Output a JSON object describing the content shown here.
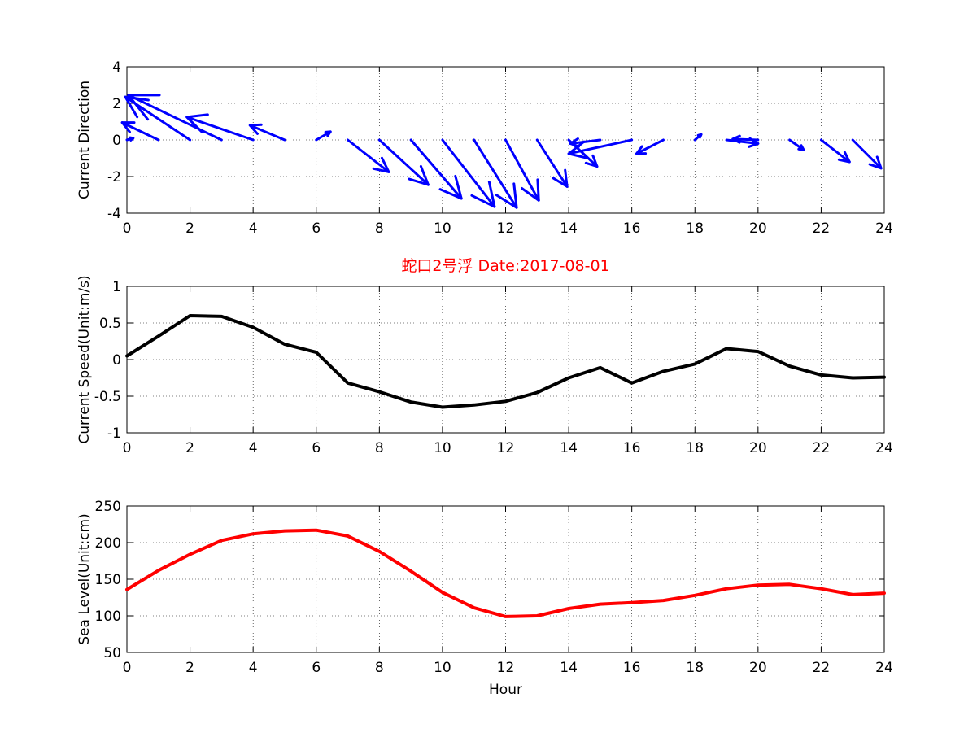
{
  "chart_data": [
    {
      "type": "quiver",
      "title": "",
      "xlabel": "",
      "ylabel": "Current Direction",
      "xlim": [
        0,
        24
      ],
      "ylim": [
        -4,
        4
      ],
      "xticks": [
        "0",
        "2",
        "4",
        "6",
        "8",
        "10",
        "12",
        "14",
        "16",
        "18",
        "20",
        "22",
        "24"
      ],
      "yticks": [
        "-4",
        "-2",
        "0",
        "2",
        "4"
      ],
      "grid": true,
      "color": "#0000ff",
      "arrows": [
        {
          "x": 0,
          "u": 0.2,
          "v": 0.1
        },
        {
          "x": 1,
          "u": -1.15,
          "v": 0.95
        },
        {
          "x": 2,
          "u": -2.05,
          "v": 2.35
        },
        {
          "x": 3,
          "u": -2.95,
          "v": 2.45
        },
        {
          "x": 4,
          "u": -2.1,
          "v": 1.25
        },
        {
          "x": 5,
          "u": -1.1,
          "v": 0.8
        },
        {
          "x": 6,
          "u": 0.45,
          "v": 0.45
        },
        {
          "x": 7,
          "u": 1.3,
          "v": -1.75
        },
        {
          "x": 8,
          "u": 1.55,
          "v": -2.45
        },
        {
          "x": 9,
          "u": 1.6,
          "v": -3.2
        },
        {
          "x": 10,
          "u": 1.65,
          "v": -3.65
        },
        {
          "x": 11,
          "u": 1.35,
          "v": -3.7
        },
        {
          "x": 12,
          "u": 1.05,
          "v": -3.3
        },
        {
          "x": 13,
          "u": 0.95,
          "v": -2.55
        },
        {
          "x": 14,
          "u": 0.9,
          "v": -1.45
        },
        {
          "x": 15,
          "u": -0.95,
          "v": -0.2
        },
        {
          "x": 16,
          "u": -2.0,
          "v": -0.75
        },
        {
          "x": 17,
          "u": -0.85,
          "v": -0.75
        },
        {
          "x": 18,
          "u": 0.2,
          "v": 0.3
        },
        {
          "x": 19,
          "u": 1.0,
          "v": -0.2
        },
        {
          "x": 20,
          "u": -0.8,
          "v": 0.05
        },
        {
          "x": 21,
          "u": 0.45,
          "v": -0.55
        },
        {
          "x": 22,
          "u": 0.9,
          "v": -1.2
        },
        {
          "x": 23,
          "u": 0.9,
          "v": -1.55
        }
      ]
    },
    {
      "type": "line",
      "title": "蛇口2号浮    Date:2017-08-01",
      "title_color": "#ff0000",
      "xlabel": "",
      "ylabel": "Current Speed(Unit:m/s)",
      "xlim": [
        0,
        24
      ],
      "ylim": [
        -1,
        1
      ],
      "xticks": [
        "0",
        "2",
        "4",
        "6",
        "8",
        "10",
        "12",
        "14",
        "16",
        "18",
        "20",
        "22",
        "24"
      ],
      "yticks": [
        "-1",
        "-0.5",
        "0",
        "0.5",
        "1"
      ],
      "grid": true,
      "series": [
        {
          "name": "Current Speed",
          "color": "#000000",
          "x": [
            0,
            1,
            2,
            3,
            4,
            5,
            6,
            7,
            8,
            9,
            10,
            11,
            12,
            13,
            14,
            15,
            16,
            17,
            18,
            19,
            20,
            21,
            22,
            23,
            24
          ],
          "values": [
            0.05,
            0.32,
            0.6,
            0.59,
            0.44,
            0.21,
            0.1,
            -0.32,
            -0.44,
            -0.58,
            -0.65,
            -0.62,
            -0.57,
            -0.45,
            -0.25,
            -0.11,
            -0.32,
            -0.16,
            -0.06,
            0.15,
            0.11,
            -0.09,
            -0.21,
            -0.25,
            -0.24
          ]
        }
      ]
    },
    {
      "type": "line",
      "title": "",
      "xlabel": "Hour",
      "ylabel": "Sea Level(Unit:cm)",
      "xlim": [
        0,
        24
      ],
      "ylim": [
        50,
        250
      ],
      "xticks": [
        "0",
        "2",
        "4",
        "6",
        "8",
        "10",
        "12",
        "14",
        "16",
        "18",
        "20",
        "22",
        "24"
      ],
      "yticks": [
        "50",
        "100",
        "150",
        "200",
        "250"
      ],
      "grid": true,
      "series": [
        {
          "name": "Sea Level",
          "color": "#ff0000",
          "x": [
            0,
            1,
            2,
            3,
            4,
            5,
            6,
            7,
            8,
            9,
            10,
            11,
            12,
            13,
            14,
            15,
            16,
            17,
            18,
            19,
            20,
            21,
            22,
            23,
            24
          ],
          "values": [
            136,
            162,
            184,
            203,
            212,
            216,
            217,
            209,
            188,
            161,
            132,
            111,
            99,
            100,
            110,
            116,
            118,
            121,
            128,
            137,
            142,
            143,
            137,
            129,
            131
          ]
        }
      ]
    }
  ]
}
